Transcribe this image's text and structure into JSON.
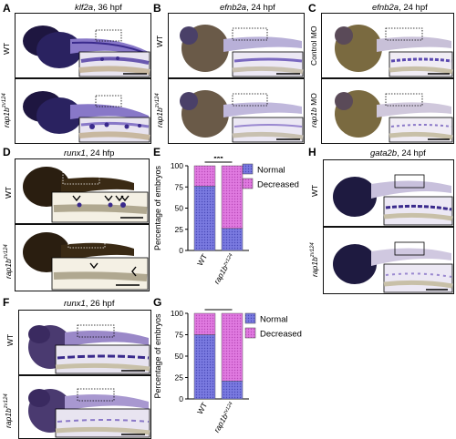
{
  "panels": {
    "A": {
      "letter": "A",
      "title_gene": "klf2a",
      "title_stage": ", 36 hpf",
      "row1": "WT",
      "row2_gene": "rap1b",
      "row2_sup": "zv124"
    },
    "B": {
      "letter": "B",
      "title_gene": "efnb2a",
      "title_stage": ", 24 hpf",
      "row1": "WT",
      "row2_gene": "rap1b",
      "row2_sup": "zv124"
    },
    "C": {
      "letter": "C",
      "title_gene": "efnb2a",
      "title_stage": ", 24 hpf",
      "row1": "Control MO",
      "row2_gene": "rap1b",
      "row2_rest": " MO"
    },
    "D": {
      "letter": "D",
      "title_gene": "runx1",
      "title_stage": ", 24 hfp",
      "row1": "WT",
      "row2_gene": "rap1b",
      "row2_sup": "zv124"
    },
    "F": {
      "letter": "F",
      "title_gene": "runx1",
      "title_stage": ", 26 hpf",
      "row1": "WT",
      "row2_gene": "rap1b",
      "row2_sup": "zv124"
    },
    "H": {
      "letter": "H",
      "title_gene": "gata2b",
      "title_stage": ", 24 hpf",
      "row1": "WT",
      "row2_gene": "rap1b",
      "row2_sup": "zv124"
    }
  },
  "chart_data": [
    {
      "type": "bar",
      "panel": "E",
      "ylabel": "Percentage of embryos",
      "ylim": [
        0,
        100
      ],
      "yticks": [
        "0",
        "25",
        "50",
        "75",
        "100"
      ],
      "categories": [
        "WT",
        "rap1b zv124"
      ],
      "category_labels": [
        {
          "main": "WT",
          "sup": ""
        },
        {
          "main": "rap1b",
          "sup": "zv124"
        }
      ],
      "stacked": true,
      "series": [
        {
          "name": "Normal",
          "values": [
            76,
            26
          ],
          "color": "#6b6bd6"
        },
        {
          "name": "Decreased",
          "values": [
            24,
            74
          ],
          "color": "#d66bd6"
        }
      ],
      "significance": "***",
      "legend_position": "right"
    },
    {
      "type": "bar",
      "panel": "G",
      "ylabel": "Percentage of embryos",
      "ylim": [
        0,
        100
      ],
      "yticks": [
        "0",
        "25",
        "50",
        "75",
        "100"
      ],
      "categories": [
        "WT",
        "rap1b zv124"
      ],
      "category_labels": [
        {
          "main": "WT",
          "sup": ""
        },
        {
          "main": "rap1b",
          "sup": "zv124"
        }
      ],
      "stacked": true,
      "series": [
        {
          "name": "Normal",
          "values": [
            75,
            21
          ],
          "color": "#6b6bd6"
        },
        {
          "name": "Decreased",
          "values": [
            25,
            79
          ],
          "color": "#d66bd6"
        }
      ],
      "significance": "*",
      "legend_position": "right"
    }
  ],
  "colors": {
    "normal": "#6b6bd6",
    "decreased": "#d66bd6",
    "stain": "#3a2a8c"
  }
}
